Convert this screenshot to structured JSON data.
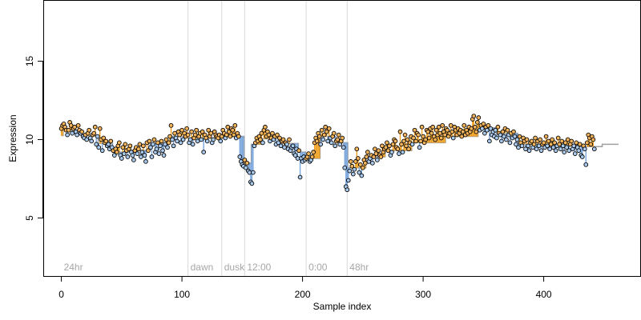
{
  "chart_data": {
    "type": "scatter",
    "title": "",
    "xlabel": "Sample index",
    "ylabel": "Expression",
    "xlim": [
      -15,
      480
    ],
    "ylim": [
      1.3,
      18.9
    ],
    "xticks": [
      0,
      100,
      200,
      300,
      400
    ],
    "yticks": [
      5,
      10,
      15
    ],
    "colors": {
      "point_above_fill": "#f2b35a",
      "point_below_fill": "#a8c8ec",
      "residual_above": "#f0a020",
      "residual_below": "#7aa6dc",
      "step_line": "#a0a0a0",
      "marker_line": "#d9d9d9",
      "annotation_text": "#a6a6a6"
    },
    "markers": [
      {
        "x": 0,
        "label": "24hr"
      },
      {
        "x": 105,
        "label": "dawn"
      },
      {
        "x": 133,
        "label": "dusk"
      },
      {
        "x": 152,
        "label": "12:00"
      },
      {
        "x": 203,
        "label": "0:00"
      },
      {
        "x": 237,
        "label": "48hr"
      }
    ],
    "segments": [
      {
        "start": 0,
        "end": 1,
        "level": 10.25
      },
      {
        "start": 2,
        "end": 16,
        "level": 10.6
      },
      {
        "start": 17,
        "end": 30,
        "level": 10.25
      },
      {
        "start": 31,
        "end": 42,
        "level": 9.75
      },
      {
        "start": 43,
        "end": 55,
        "level": 9.2
      },
      {
        "start": 56,
        "end": 72,
        "level": 9.3
      },
      {
        "start": 73,
        "end": 90,
        "level": 9.75
      },
      {
        "start": 91,
        "end": 104,
        "level": 10.2
      },
      {
        "start": 105,
        "end": 132,
        "level": 10.1
      },
      {
        "start": 133,
        "end": 151,
        "level": 10.2
      },
      {
        "start": 152,
        "end": 157,
        "level": 8.5
      },
      {
        "start": 158,
        "end": 166,
        "level": 9.7
      },
      {
        "start": 167,
        "end": 180,
        "level": 10.05
      },
      {
        "start": 181,
        "end": 196,
        "level": 9.75
      },
      {
        "start": 197,
        "end": 202,
        "level": 9.2
      },
      {
        "start": 203,
        "end": 214,
        "level": 8.8
      },
      {
        "start": 215,
        "end": 227,
        "level": 10.2
      },
      {
        "start": 228,
        "end": 237,
        "level": 9.8
      },
      {
        "start": 238,
        "end": 252,
        "level": 8.2
      },
      {
        "start": 253,
        "end": 268,
        "level": 8.9
      },
      {
        "start": 269,
        "end": 290,
        "level": 9.3
      },
      {
        "start": 291,
        "end": 318,
        "level": 9.8
      },
      {
        "start": 319,
        "end": 345,
        "level": 10.2
      },
      {
        "start": 346,
        "end": 360,
        "level": 10.75
      },
      {
        "start": 361,
        "end": 378,
        "level": 10.4
      },
      {
        "start": 379,
        "end": 398,
        "level": 9.7
      },
      {
        "start": 399,
        "end": 428,
        "level": 9.65
      },
      {
        "start": 429,
        "end": 448,
        "level": 9.55
      },
      {
        "start": 449,
        "end": 462,
        "level": 9.7
      }
    ],
    "series_values": [
      10.7,
      10.9,
      11.0,
      10.8,
      10.6,
      10.3,
      10.6,
      11.1,
      10.9,
      10.4,
      10.7,
      10.8,
      10.5,
      10.3,
      10.9,
      10.6,
      10.4,
      10.5,
      10.2,
      10.1,
      10.3,
      10.0,
      10.4,
      10.6,
      10.1,
      9.9,
      10.3,
      10.4,
      10.8,
      9.7,
      10.2,
      9.5,
      10.7,
      10.0,
      9.3,
      10.1,
      9.8,
      9.9,
      9.6,
      9.7,
      9.4,
      9.9,
      9.5,
      9.3,
      9.0,
      9.4,
      9.2,
      9.6,
      9.8,
      9.0,
      8.8,
      9.5,
      9.1,
      9.7,
      9.3,
      8.9,
      9.4,
      9.6,
      9.2,
      9.0,
      8.7,
      9.3,
      9.5,
      9.1,
      9.4,
      9.7,
      8.9,
      9.2,
      9.6,
      9.0,
      8.6,
      9.8,
      9.3,
      9.9,
      9.5,
      8.9,
      9.7,
      10.0,
      9.2,
      9.4,
      9.8,
      9.1,
      9.6,
      9.9,
      9.3,
      9.0,
      9.7,
      10.0,
      9.5,
      9.8,
      10.2,
      10.9,
      10.0,
      9.6,
      10.4,
      10.1,
      9.9,
      10.5,
      10.3,
      9.8,
      10.6,
      10.0,
      10.4,
      10.2,
      10.7,
      10.3,
      9.8,
      10.0,
      10.5,
      9.7,
      10.1,
      10.3,
      10.6,
      9.9,
      10.2,
      10.4,
      10.0,
      10.5,
      9.2,
      10.3,
      10.1,
      9.9,
      10.6,
      10.2,
      10.4,
      9.8,
      10.0,
      10.5,
      10.3,
      10.2,
      10.1,
      10.3,
      9.9,
      10.2,
      10.6,
      10.4,
      10.1,
      10.3,
      10.8,
      10.5,
      10.2,
      10.7,
      10.6,
      10.3,
      10.9,
      10.1,
      10.4,
      10.2,
      8.9,
      8.6,
      8.4,
      8.3,
      8.7,
      8.2,
      8.5,
      8.0,
      7.9,
      7.3,
      7.2,
      7.9,
      9.6,
      9.8,
      10.1,
      9.9,
      10.2,
      10.0,
      10.4,
      9.8,
      10.6,
      10.8,
      10.2,
      10.5,
      10.3,
      9.9,
      10.1,
      10.4,
      10.0,
      10.2,
      9.7,
      10.3,
      9.8,
      10.1,
      9.6,
      9.9,
      10.0,
      9.5,
      9.8,
      9.7,
      9.4,
      10.0,
      9.3,
      9.5,
      9.6,
      9.1,
      9.0,
      9.4,
      8.8,
      9.3,
      7.6,
      8.8,
      8.6,
      8.9,
      8.7,
      8.8,
      8.9,
      9.1,
      8.6,
      8.7,
      8.9,
      9.2,
      9.8,
      10.1,
      9.9,
      10.4,
      10.2,
      9.7,
      10.6,
      10.0,
      10.3,
      10.8,
      10.5,
      9.9,
      10.7,
      10.1,
      9.8,
      10.2,
      10.4,
      9.6,
      9.9,
      10.0,
      10.3,
      9.7,
      9.9,
      10.1,
      9.5,
      8.2,
      7.0,
      6.8,
      7.4,
      8.0,
      8.6,
      8.3,
      7.8,
      8.1,
      8.6,
      9.4,
      8.8,
      7.9,
      8.4,
      7.7,
      8.2,
      8.7,
      8.5,
      8.9,
      9.2,
      8.6,
      8.8,
      9.0,
      8.5,
      8.9,
      9.4,
      9.1,
      8.7,
      9.3,
      9.0,
      8.9,
      9.6,
      9.2,
      9.4,
      9.5,
      9.8,
      9.3,
      9.6,
      9.0,
      9.2,
      9.7,
      10.0,
      9.9,
      9.5,
      9.4,
      9.1,
      10.5,
      9.7,
      9.2,
      9.9,
      10.3,
      9.6,
      10.0,
      9.4,
      9.8,
      10.2,
      9.7,
      10.1,
      10.6,
      9.9,
      10.4,
      10.3,
      9.5,
      9.9,
      10.8,
      10.2,
      9.8,
      10.0,
      10.6,
      10.5,
      10.1,
      10.7,
      10.4,
      10.8,
      10.2,
      10.0,
      10.6,
      10.3,
      10.8,
      10.4,
      10.1,
      10.9,
      10.5,
      10.3,
      10.7,
      10.6,
      10.2,
      10.4,
      10.9,
      10.5,
      10.1,
      10.8,
      10.6,
      10.3,
      10.7,
      10.4,
      10.6,
      10.2,
      10.5,
      10.9,
      10.3,
      10.6,
      10.4,
      10.8,
      10.5,
      10.7,
      11.3,
      11.5,
      10.8,
      10.5,
      11.1,
      11.4,
      10.6,
      10.9,
      10.7,
      11.0,
      10.4,
      10.8,
      10.6,
      10.9,
      9.9,
      10.7,
      10.3,
      10.5,
      10.2,
      10.6,
      10.1,
      10.8,
      10.4,
      10.3,
      9.9,
      10.5,
      10.2,
      10.7,
      10.0,
      10.6,
      10.3,
      9.8,
      10.4,
      10.1,
      10.5,
      10.2,
      9.7,
      10.0,
      9.5,
      10.2,
      9.8,
      9.6,
      10.1,
      9.9,
      9.4,
      10.0,
      9.6,
      9.3,
      9.8,
      9.9,
      9.5,
      9.7,
      10.1,
      9.4,
      9.9,
      9.6,
      10.0,
      9.3,
      9.7,
      9.8,
      9.5,
      10.2,
      9.6,
      9.9,
      9.4,
      9.7,
      10.0,
      9.5,
      9.8,
      9.3,
      9.6,
      10.1,
      9.7,
      9.4,
      9.9,
      9.6,
      9.2,
      9.8,
      9.5,
      10.0,
      9.3,
      9.7,
      9.9,
      9.4,
      9.6,
      9.1,
      9.8,
      9.5,
      9.3,
      9.7,
      9.0,
      8.9,
      9.6,
      9.4,
      8.4,
      9.8,
      10.3,
      10.1,
      9.7,
      10.2,
      10.0,
      9.4
    ]
  }
}
